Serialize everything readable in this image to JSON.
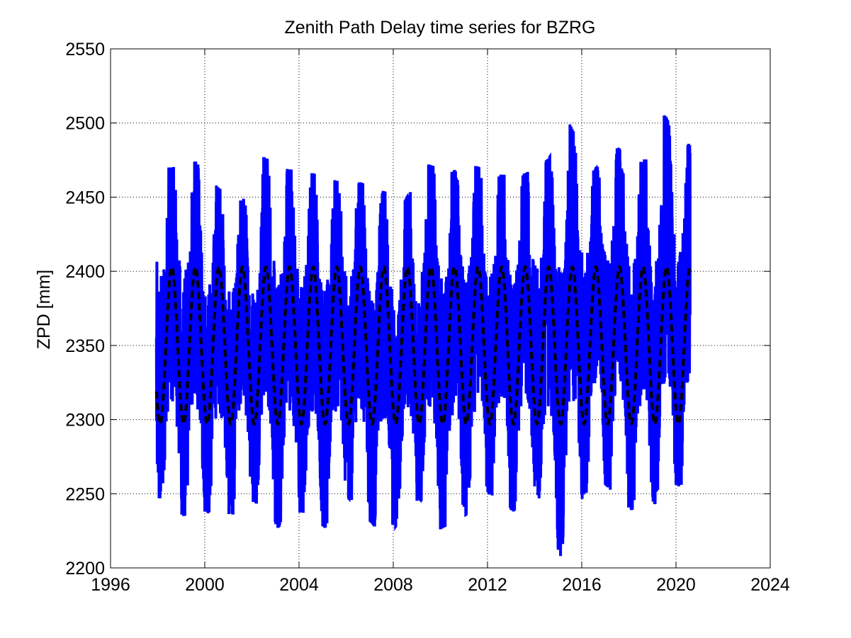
{
  "chart_data": {
    "type": "line",
    "title": "Zenith Path Delay time series for BZRG",
    "xlabel": "",
    "ylabel": "ZPD [mm]",
    "xlim": [
      1996,
      2024
    ],
    "ylim": [
      2200,
      2550
    ],
    "xticks": [
      1996,
      2000,
      2004,
      2008,
      2012,
      2016,
      2020,
      2024
    ],
    "yticks": [
      2200,
      2250,
      2300,
      2350,
      2400,
      2450,
      2500,
      2550
    ],
    "xtick_labels": [
      "1996",
      "2000",
      "2004",
      "2008",
      "2012",
      "2016",
      "2020",
      "2024"
    ],
    "ytick_labels": [
      "2200",
      "2250",
      "2300",
      "2350",
      "2400",
      "2450",
      "2500",
      "2550"
    ],
    "grid": true,
    "grid_style": "dotted",
    "series": [
      {
        "color": "#0000ff",
        "style": "solid",
        "x_range": [
          1997.95,
          2020.6
        ],
        "annual_peaks": [
          {
            "x": 1998.6,
            "y": 2470
          },
          {
            "x": 1999.6,
            "y": 2474
          },
          {
            "x": 2000.6,
            "y": 2456
          },
          {
            "x": 2001.6,
            "y": 2447
          },
          {
            "x": 2002.5,
            "y": 2477
          },
          {
            "x": 2003.5,
            "y": 2469
          },
          {
            "x": 2004.6,
            "y": 2466
          },
          {
            "x": 2005.6,
            "y": 2461
          },
          {
            "x": 2006.6,
            "y": 2460
          },
          {
            "x": 2007.6,
            "y": 2454
          },
          {
            "x": 2008.5,
            "y": 2448
          },
          {
            "x": 2009.5,
            "y": 2472
          },
          {
            "x": 2010.5,
            "y": 2467
          },
          {
            "x": 2011.5,
            "y": 2471
          },
          {
            "x": 2012.6,
            "y": 2465
          },
          {
            "x": 2013.6,
            "y": 2466
          },
          {
            "x": 2014.6,
            "y": 2476
          },
          {
            "x": 2015.5,
            "y": 2499
          },
          {
            "x": 2016.5,
            "y": 2468
          },
          {
            "x": 2017.5,
            "y": 2483
          },
          {
            "x": 2018.6,
            "y": 2473
          },
          {
            "x": 2019.5,
            "y": 2505
          },
          {
            "x": 2020.5,
            "y": 2485
          }
        ],
        "annual_troughs": [
          {
            "x": 1998.1,
            "y": 2247
          },
          {
            "x": 1999.1,
            "y": 2235
          },
          {
            "x": 2000.0,
            "y": 2238
          },
          {
            "x": 2001.2,
            "y": 2236
          },
          {
            "x": 2002.1,
            "y": 2245
          },
          {
            "x": 2003.1,
            "y": 2227
          },
          {
            "x": 2004.1,
            "y": 2238
          },
          {
            "x": 2005.1,
            "y": 2227
          },
          {
            "x": 2006.1,
            "y": 2247
          },
          {
            "x": 2007.2,
            "y": 2228
          },
          {
            "x": 2008.1,
            "y": 2228
          },
          {
            "x": 2009.1,
            "y": 2247
          },
          {
            "x": 2010.0,
            "y": 2226
          },
          {
            "x": 2011.1,
            "y": 2236
          },
          {
            "x": 2012.1,
            "y": 2250
          },
          {
            "x": 2013.1,
            "y": 2238
          },
          {
            "x": 2014.0,
            "y": 2255
          },
          {
            "x": 2015.1,
            "y": 2208
          },
          {
            "x": 2016.1,
            "y": 2250
          },
          {
            "x": 2017.0,
            "y": 2256
          },
          {
            "x": 2018.1,
            "y": 2239
          },
          {
            "x": 2019.1,
            "y": 2243
          },
          {
            "x": 2020.0,
            "y": 2256
          }
        ]
      },
      {
        "color": "#000000",
        "style": "dashed",
        "model": "seasonal sinusoid",
        "mean": 2350,
        "amplitude": 53,
        "peak_phase": 0.6,
        "x_range": [
          1997.95,
          2020.6
        ]
      }
    ]
  }
}
